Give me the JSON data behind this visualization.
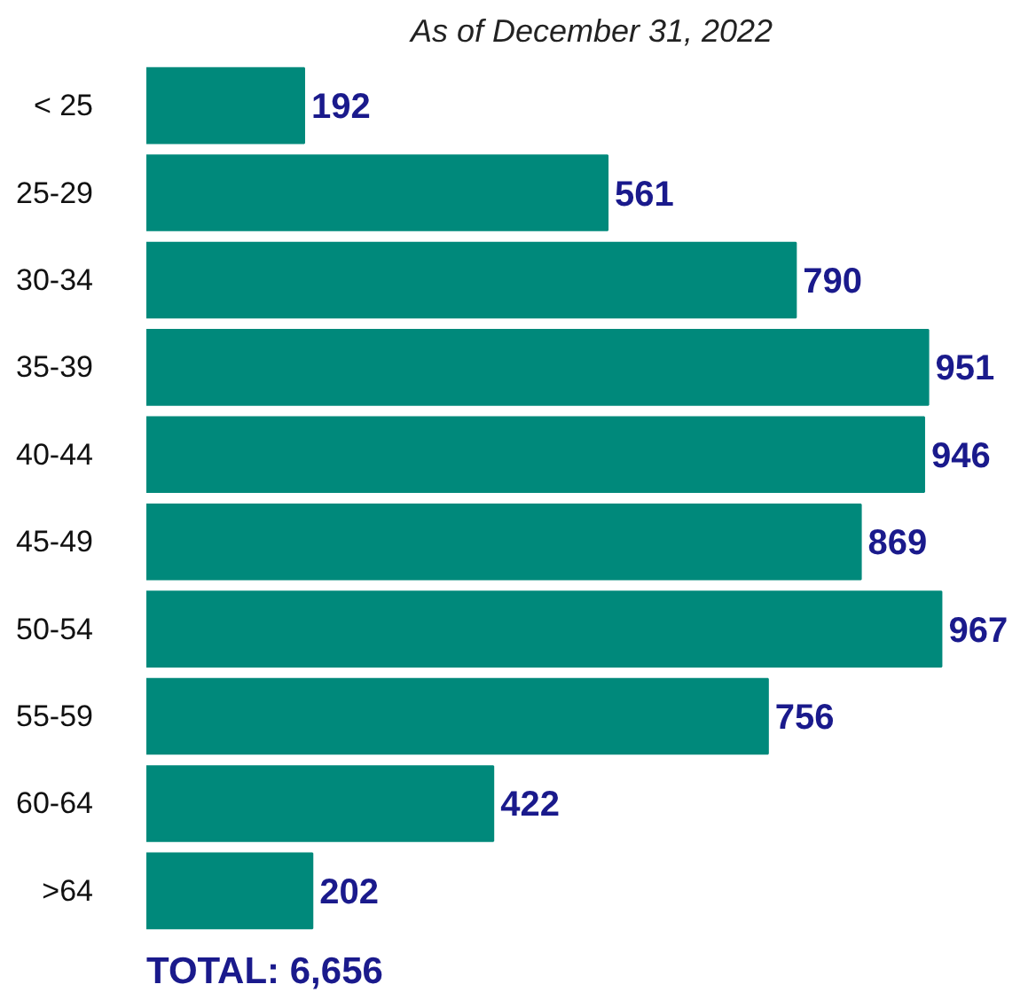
{
  "chart_data": {
    "type": "bar",
    "orientation": "horizontal",
    "title": "As of December 31, 2022",
    "categories": [
      "< 25",
      "25-29",
      "30-34",
      "35-39",
      "40-44",
      "45-49",
      "50-54",
      "55-59",
      "60-64",
      ">64"
    ],
    "values": [
      192,
      561,
      790,
      951,
      946,
      869,
      967,
      756,
      422,
      202
    ],
    "color": "#00897b",
    "data_labels": true,
    "grid": false,
    "annotations": [
      "TOTAL: 6,656"
    ]
  }
}
